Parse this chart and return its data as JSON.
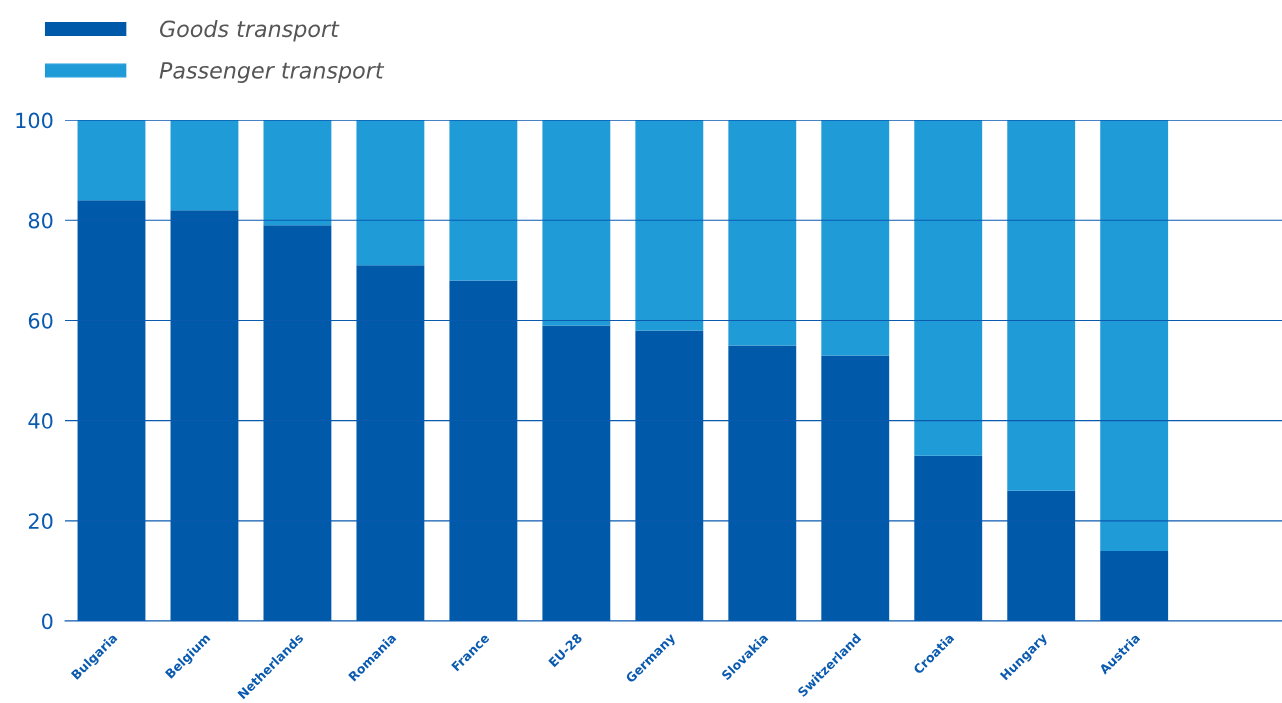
{
  "chart_data": {
    "type": "bar",
    "stacked": true,
    "categories": [
      "Bulgaria",
      "Belgium",
      "Netherlands",
      "Romania",
      "France",
      "EU-28",
      "Germany",
      "Slovakia",
      "Switzerland",
      "Croatia",
      "Hungary",
      "Austria"
    ],
    "series": [
      {
        "name": "Goods transport",
        "color": "#005aa9",
        "values": [
          84,
          82,
          79,
          71,
          68,
          59,
          58,
          55,
          53,
          33,
          26,
          14
        ]
      },
      {
        "name": "Passenger transport",
        "color": "#1f9bd7",
        "values": [
          16,
          18,
          21,
          29,
          32,
          41,
          42,
          45,
          47,
          67,
          74,
          86
        ]
      }
    ],
    "ylim": [
      0,
      100
    ],
    "yticks": [
      0,
      20,
      40,
      60,
      80,
      100
    ],
    "grid": "y",
    "legend": "top left"
  }
}
